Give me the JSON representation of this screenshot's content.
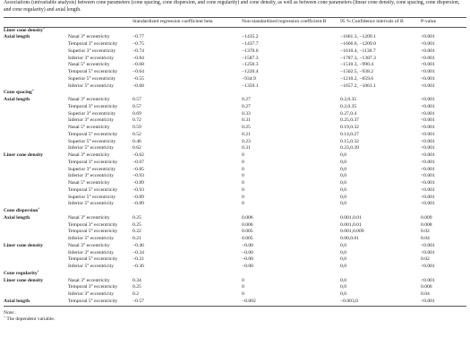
{
  "caption": "Associations (univariable analysis) between cone parameters (cone spacing, cone dispersion, and cone regularity) and cone density, as well as between cone parameters (linear cone density, cone spacing, cone dispersion, and cone regularity) and axial length.",
  "table": {
    "header": [
      "Standardized regression coefficient beta",
      "Non-standardized regression coefficient B",
      "95 % Confidence intervals of B",
      "P-value"
    ],
    "sections": [
      {
        "title": "Liner cone density",
        "mark": "*",
        "groups": [
          {
            "label": "Axial length",
            "rows": [
              [
                "Nasal 3° eccentricity",
                "−0.77",
                "−1435.2",
                "−1661.3, −1209.1",
                "<0.001"
              ],
              [
                "Temporal 3° eccentricity",
                "−0.75",
                "−1437.7",
                "−1666.6, −1209.0",
                "<0.001"
              ],
              [
                "Superior 3° eccentricity",
                "−0.74",
                "−1370.6",
                "−1610.4, −1130.7",
                "<0.001"
              ],
              [
                "Inferior 3° eccentricity",
                "−0.84",
                "−1587.3",
                "−1787.3, −1387.3",
                "<0.001"
              ],
              [
                "Nasal 5° eccentricity",
                "−0.68",
                "−1250.3",
                "−1510.3, −990.4",
                "<0.001"
              ],
              [
                "Temporal 5° eccentricity",
                "−0.64",
                "−1220.4",
                "−1502.5, −938.2",
                "<0.001"
              ],
              [
                "Superior 5° eccentricity",
                "−0.55",
                "−934.9",
                "−1210.2, −659.6",
                "<0.001"
              ],
              [
                "Inferior 5° eccentricity",
                "−0.68",
                "−1359.1",
                "−1657.2, −1061.1",
                "<0.001"
              ]
            ]
          }
        ]
      },
      {
        "title": "Cone spacing",
        "mark": "*",
        "groups": [
          {
            "label": "Axial length",
            "rows": [
              [
                "Nasal 3° eccentricity",
                "0.57",
                "0.27",
                "0.2,0.35",
                "<0.001"
              ],
              [
                "Temporal 3° eccentricity",
                "0.57",
                "0.27",
                "0.2,0.35",
                "<0.001"
              ],
              [
                "Superior 3° eccentricity",
                "0.69",
                "0.33",
                "0.27,0.4",
                "<0.001"
              ],
              [
                "Inferior 3° eccentricity",
                "0.72",
                "0.31",
                "0.25,0.37",
                "<0.001"
              ],
              [
                "Nasal 5° eccentricity",
                "0.59",
                "0.25",
                "0.19,0.32",
                "<0.001"
              ],
              [
                "Temporal 5° eccentricity",
                "0.52",
                "0.21",
                "0.14,0.27",
                "<0.001"
              ],
              [
                "Superior 5° eccentricity",
                "0.46",
                "0.23",
                "0.15,0.32",
                "<0.001"
              ],
              [
                "Inferior 5° eccentricity",
                "0.62",
                "0.31",
                "0.23,0.39",
                "<0.001"
              ]
            ]
          },
          {
            "label": "Liner cone density",
            "rows": [
              [
                "Nasal 3° eccentricity",
                "−0.62",
                "0",
                "0,0",
                "<0.001"
              ],
              [
                "Temporal 3° eccentricity",
                "−0.67",
                "0",
                "0,0",
                "<0.001"
              ],
              [
                "Superior 3° eccentricity",
                "−0.85",
                "0",
                "0,0",
                "<0.001"
              ],
              [
                "Inferior 3° eccentricity",
                "−0.93",
                "0",
                "0,0",
                "<0.001"
              ],
              [
                "Nasal 5° eccentricity",
                "−0.89",
                "0",
                "0,0",
                "<0.001"
              ],
              [
                "Temporal 5° eccentricity",
                "−0.93",
                "0",
                "0,0",
                "<0.001"
              ],
              [
                "Superior 5° eccentricity",
                "−0.89",
                "0",
                "0,0",
                "<0.001"
              ],
              [
                "Inferior 5° eccentricity",
                "−0.89",
                "0",
                "0,0",
                "<0.001"
              ]
            ]
          }
        ]
      },
      {
        "title": "Cone dispersion",
        "mark": "*",
        "groups": [
          {
            "label": "Axial length",
            "rows": [
              [
                "Nasal 3° eccentricity",
                "0.25",
                "0.006",
                "0.001,0.01",
                "0.009"
              ],
              [
                "Temporal 3° eccentricity",
                "0.25",
                "0.006",
                "0.001,0.01",
                "0.008"
              ],
              [
                "Temporal 5° eccentricity",
                "0.22",
                "0.005",
                "0.001,0.009",
                "0.02"
              ],
              [
                "Inferior 5° eccentricity",
                "0.21",
                "0.005",
                "0.00,0.01",
                "0.04"
              ]
            ]
          },
          {
            "label": "Liner cone density",
            "rows": [
              [
                "Nasal 3° eccentricity",
                "−0.46",
                "−0.00",
                "0,0",
                "<0.001"
              ],
              [
                "Inferior 3° eccentricity",
                "−0.34",
                "−0.00",
                "0,0",
                "<0.001"
              ],
              [
                "Temporal 5° eccentricity",
                "−0.21",
                "−0.00",
                "0,0",
                "0.02"
              ],
              [
                "Inferior 5° eccentricity",
                "−0.36",
                "−0.00",
                "0,0",
                "<0.001"
              ]
            ]
          }
        ]
      },
      {
        "title": "Cone regularity",
        "mark": "*",
        "groups": [
          {
            "label": "Liner cone density",
            "rows": [
              [
                "Nasal 3° eccentricity",
                "0.34",
                "0",
                "0,0",
                "<0.001"
              ],
              [
                "Temporal 3° eccentricity",
                "0.25",
                "0",
                "0,0",
                "0.006"
              ],
              [
                "Inferior 3° eccentricity",
                "0.2",
                "0",
                "0,0",
                "0.04"
              ]
            ]
          },
          {
            "label": "Axial length",
            "rows": [
              [
                "Temporal 5° eccentricity",
                "−0.57",
                "−0.002",
                "−0.003,0",
                "<0.001"
              ]
            ]
          }
        ]
      }
    ]
  },
  "note": "Note:.",
  "footnote": {
    "mark": "*",
    "text": "The dependent variable."
  }
}
